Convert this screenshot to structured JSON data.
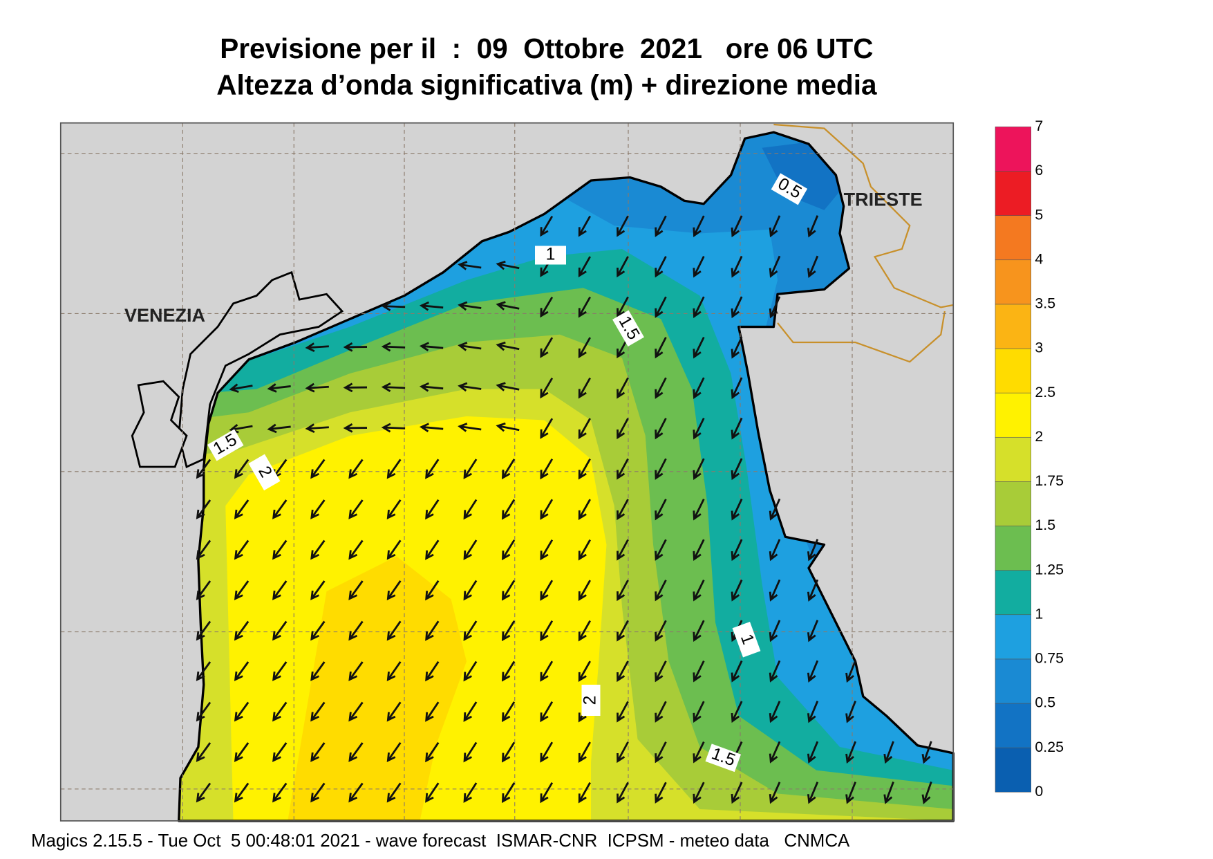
{
  "header": {
    "title": "Previsione per il  :  09  Ottobre  2021   ore 06 UTC",
    "subtitle": "Altezza d’onda significativa (m) + direzione media"
  },
  "map": {
    "places": [
      "VENEZIA",
      "TRIESTE"
    ],
    "contour_labels": [
      "0.5",
      "1",
      "1.5",
      "1.5",
      "2",
      "1",
      "2",
      "1.5"
    ]
  },
  "colorbar": {
    "labels": [
      "0",
      "0.25",
      "0.5",
      "0.75",
      "1",
      "1.25",
      "1.5",
      "1.75",
      "2",
      "2.5",
      "3",
      "3.5",
      "4",
      "5",
      "6",
      "7"
    ],
    "colors": [
      "#0a5fb0",
      "#1273c4",
      "#1a8ad3",
      "#1ea0e0",
      "#12ada0",
      "#6cbe50",
      "#a8cc38",
      "#d6e02a",
      "#fff200",
      "#ffdc00",
      "#fbb414",
      "#f7941d",
      "#f47920",
      "#ec1c24",
      "#ed145b"
    ]
  },
  "footer": "Magics 2.15.5 - Tue Oct  5 00:48:01 2021 - wave forecast  ISMAR-CNR  ICPSM - meteo data   CNMCA"
}
